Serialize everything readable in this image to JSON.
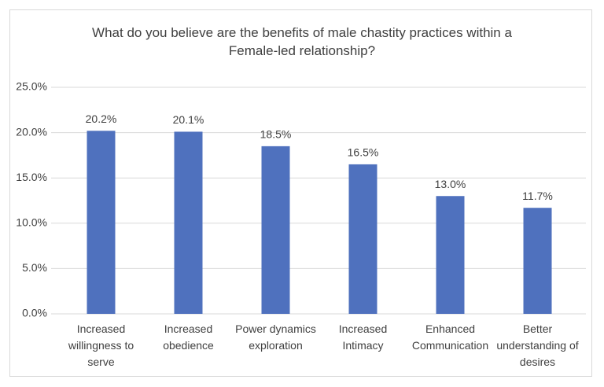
{
  "chart_data": {
    "type": "bar",
    "title": "What do you believe are the benefits of male chastity practices within a Female-led relationship?",
    "categories": [
      "Increased willingness to serve",
      "Increased obedience",
      "Power dynamics exploration",
      "Increased Intimacy",
      "Enhanced Communication",
      "Better understanding of desires"
    ],
    "values": [
      20.2,
      20.1,
      18.5,
      16.5,
      13.0,
      11.7
    ],
    "value_labels": [
      "20.2%",
      "20.1%",
      "18.5%",
      "16.5%",
      "13.0%",
      "11.7%"
    ],
    "color": "#4f71be",
    "ylim": [
      0,
      25
    ],
    "yticks": [
      {
        "value": 0,
        "label": "0.0%"
      },
      {
        "value": 5,
        "label": "5.0%"
      },
      {
        "value": 10,
        "label": "10.0%"
      },
      {
        "value": 15,
        "label": "15.0%"
      },
      {
        "value": 20,
        "label": "20.0%"
      },
      {
        "value": 25,
        "label": "25.0%"
      }
    ],
    "grid": true
  }
}
